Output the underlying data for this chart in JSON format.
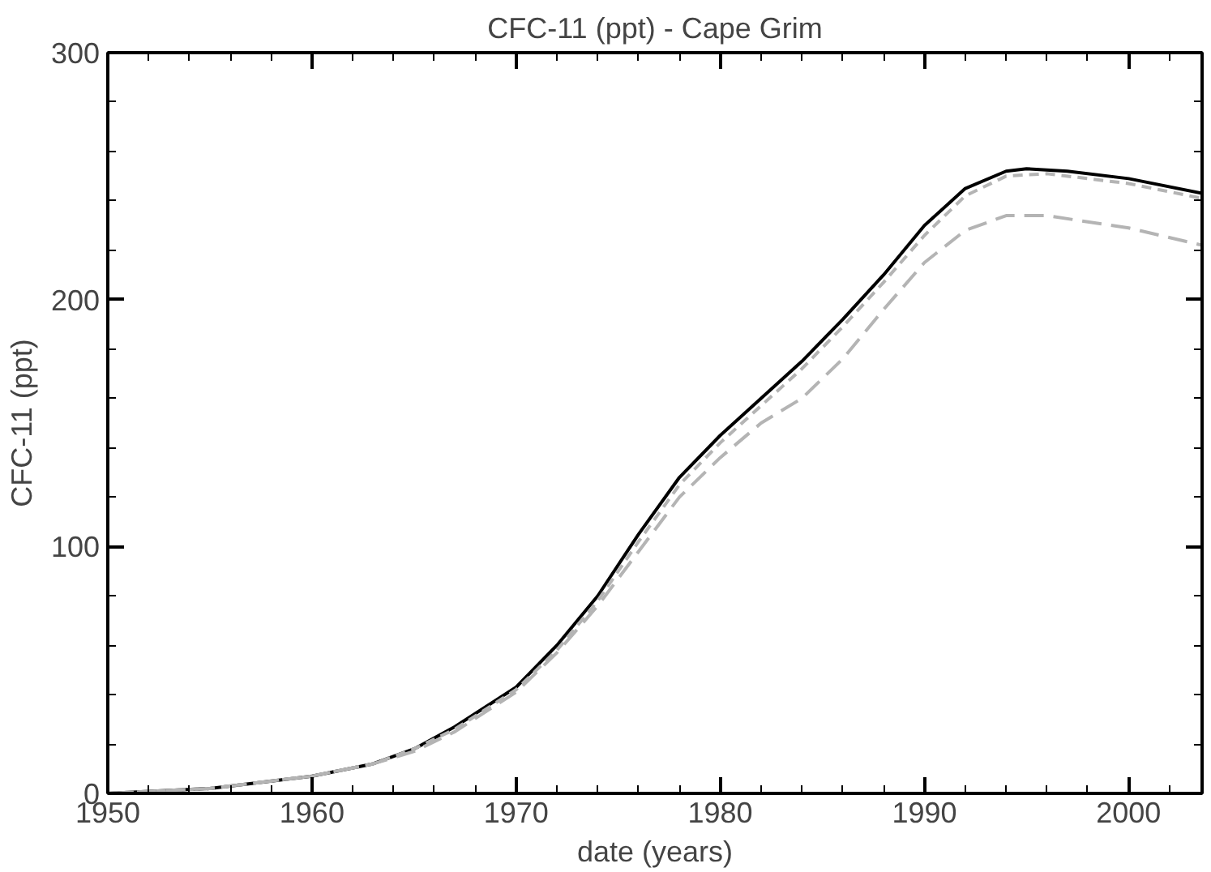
{
  "chart_data": {
    "type": "line",
    "title": "CFC-11 (ppt) - Cape Grim",
    "xlabel": "date (years)",
    "ylabel": "CFC-11 (ppt)",
    "xlim": [
      1950,
      2003.6
    ],
    "ylim": [
      0,
      300
    ],
    "xticks": [
      1950,
      1960,
      1970,
      1980,
      1990,
      2000
    ],
    "yticks": [
      0,
      100,
      200,
      300
    ],
    "grid": false,
    "series": [
      {
        "color": "#000000",
        "line_style": "solid",
        "x": [
          1950,
          1955,
          1960,
          1963,
          1965,
          1967,
          1970,
          1972,
          1974,
          1976,
          1978,
          1980,
          1982,
          1984,
          1986,
          1988,
          1990,
          1992,
          1994,
          1995,
          1997,
          2000,
          2003.6
        ],
        "values": [
          0,
          2,
          7,
          12,
          18,
          27,
          43,
          60,
          80,
          105,
          128,
          145,
          160,
          175,
          192,
          210,
          230,
          245,
          252,
          253,
          252,
          249,
          243
        ]
      },
      {
        "color": "#b4b4b4",
        "line_style": "dashed",
        "x": [
          1950,
          1955,
          1960,
          1963,
          1965,
          1967,
          1970,
          1972,
          1974,
          1976,
          1978,
          1980,
          1982,
          1984,
          1986,
          1988,
          1990,
          1992,
          1994,
          1996,
          2000,
          2003.6
        ],
        "values": [
          0,
          2,
          7,
          12,
          18,
          26,
          42,
          58,
          78,
          102,
          125,
          142,
          157,
          172,
          189,
          207,
          226,
          242,
          250,
          251,
          247,
          241
        ]
      },
      {
        "color": "#b4b4b4",
        "line_style": "longdash",
        "x": [
          1950,
          1955,
          1960,
          1963,
          1965,
          1967,
          1970,
          1972,
          1974,
          1976,
          1978,
          1980,
          1982,
          1984,
          1986,
          1988,
          1990,
          1992,
          1994,
          1996,
          2000,
          2003.6
        ],
        "values": [
          0,
          2,
          7,
          12,
          17,
          25,
          41,
          57,
          76,
          98,
          120,
          136,
          150,
          160,
          176,
          196,
          215,
          228,
          234,
          234,
          229,
          222
        ]
      }
    ]
  }
}
